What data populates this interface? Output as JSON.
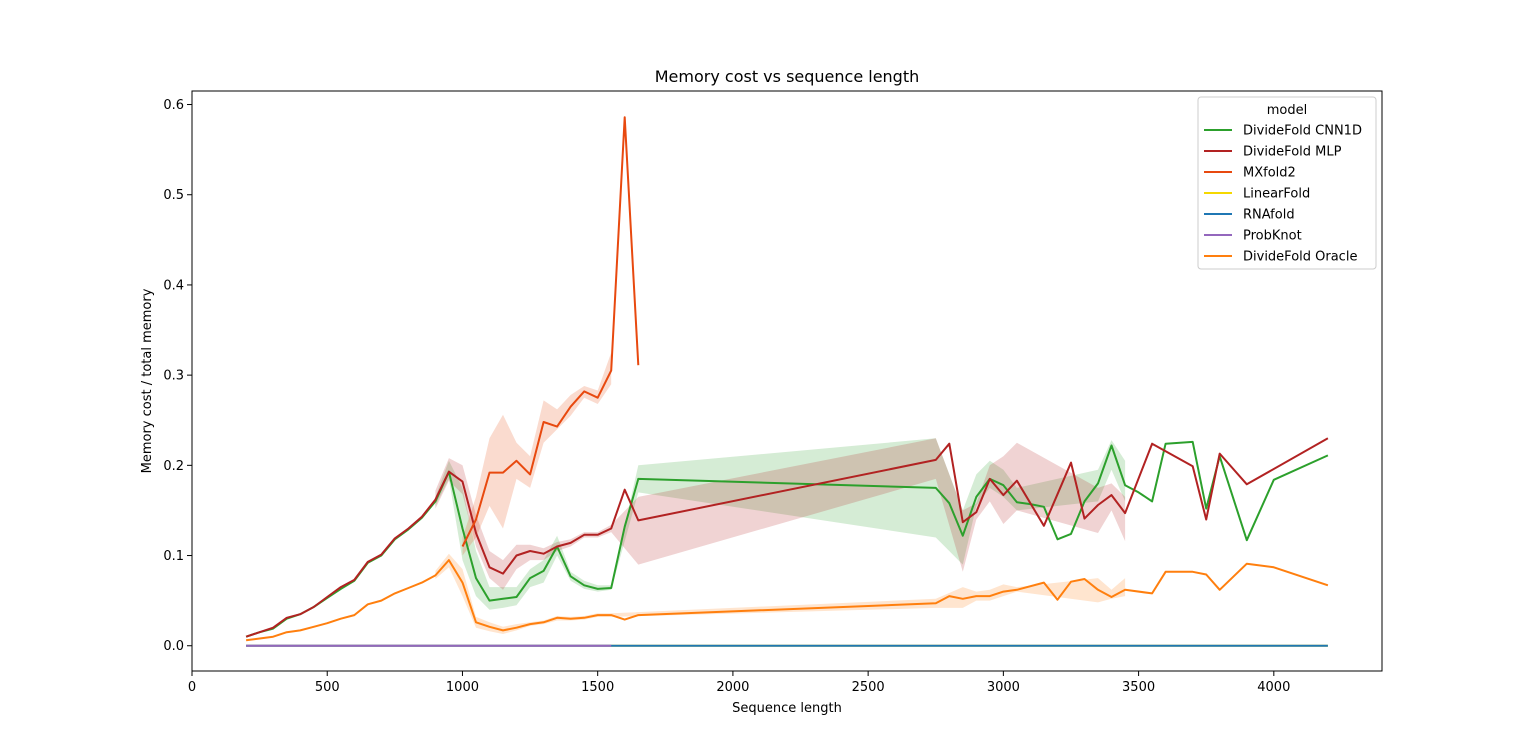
{
  "chart_data": {
    "type": "line",
    "title": "Memory cost vs sequence length",
    "xlabel": "Sequence length",
    "ylabel": "Memory cost / total memory",
    "xlim": [
      0,
      4400
    ],
    "ylim": [
      -0.028,
      0.615
    ],
    "xticks": [
      0,
      500,
      1000,
      1500,
      2000,
      2500,
      3000,
      3500,
      4000
    ],
    "yticks": [
      0.0,
      0.1,
      0.2,
      0.3,
      0.4,
      0.5,
      0.6
    ],
    "grid": false,
    "legend": {
      "title": "model",
      "position": "top-right"
    },
    "series": [
      {
        "name": "DivideFold CNN1D",
        "color": "#2ca02c",
        "x": [
          200,
          250,
          300,
          350,
          400,
          450,
          500,
          550,
          600,
          650,
          700,
          750,
          800,
          850,
          900,
          950,
          1000,
          1050,
          1100,
          1150,
          1200,
          1250,
          1300,
          1350,
          1400,
          1450,
          1500,
          1550,
          1600,
          1650,
          2750,
          2800,
          2850,
          2900,
          2950,
          3000,
          3050,
          3100,
          3150,
          3200,
          3250,
          3300,
          3350,
          3400,
          3450,
          3500,
          3550,
          3600,
          3700,
          3750,
          3800,
          3900,
          4000,
          4200
        ],
        "y": [
          0.01,
          0.015,
          0.019,
          0.03,
          0.035,
          0.043,
          0.053,
          0.063,
          0.072,
          0.092,
          0.1,
          0.118,
          0.129,
          0.142,
          0.16,
          0.193,
          0.13,
          0.075,
          0.05,
          0.052,
          0.054,
          0.075,
          0.083,
          0.11,
          0.077,
          0.067,
          0.063,
          0.064,
          0.132,
          0.185,
          0.175,
          0.158,
          0.122,
          0.165,
          0.185,
          0.178,
          0.159,
          0.157,
          0.154,
          0.118,
          0.124,
          0.16,
          0.18,
          0.222,
          0.178,
          0.17,
          0.16,
          0.224,
          0.226,
          0.152,
          0.21,
          0.117,
          0.184,
          0.211
        ],
        "band": {
          "x": [
            900,
            950,
            1000,
            1050,
            1100,
            1150,
            1200,
            1250,
            1300,
            1350,
            1400,
            1450,
            1500,
            1550,
            1650,
            2750,
            2850,
            2900,
            2950,
            3000,
            3050,
            3350,
            3400,
            3450
          ],
          "lower": [
            0.155,
            0.185,
            0.095,
            0.055,
            0.04,
            0.042,
            0.045,
            0.065,
            0.07,
            0.1,
            0.072,
            0.063,
            0.06,
            0.062,
            0.17,
            0.12,
            0.09,
            0.155,
            0.175,
            0.165,
            0.15,
            0.16,
            0.195,
            0.16
          ],
          "upper": [
            0.165,
            0.205,
            0.175,
            0.105,
            0.065,
            0.065,
            0.065,
            0.085,
            0.095,
            0.122,
            0.082,
            0.072,
            0.067,
            0.067,
            0.2,
            0.23,
            0.15,
            0.19,
            0.205,
            0.195,
            0.175,
            0.195,
            0.228,
            0.205
          ]
        }
      },
      {
        "name": "DivideFold MLP",
        "color": "#b22222",
        "x": [
          200,
          250,
          300,
          350,
          400,
          450,
          500,
          550,
          600,
          650,
          700,
          750,
          800,
          850,
          900,
          950,
          1000,
          1050,
          1100,
          1150,
          1200,
          1250,
          1300,
          1350,
          1400,
          1450,
          1500,
          1550,
          1600,
          1650,
          2750,
          2800,
          2850,
          2900,
          2950,
          3000,
          3050,
          3150,
          3200,
          3250,
          3300,
          3350,
          3400,
          3450,
          3550,
          3700,
          3750,
          3800,
          3900,
          4200
        ],
        "y": [
          0.01,
          0.015,
          0.02,
          0.031,
          0.035,
          0.043,
          0.054,
          0.065,
          0.073,
          0.093,
          0.101,
          0.119,
          0.13,
          0.143,
          0.162,
          0.193,
          0.182,
          0.125,
          0.087,
          0.08,
          0.1,
          0.105,
          0.102,
          0.11,
          0.114,
          0.123,
          0.123,
          0.13,
          0.173,
          0.139,
          0.206,
          0.224,
          0.137,
          0.148,
          0.185,
          0.167,
          0.183,
          0.133,
          0.168,
          0.203,
          0.141,
          0.156,
          0.167,
          0.147,
          0.224,
          0.199,
          0.14,
          0.213,
          0.179,
          0.23
        ],
        "band": {
          "x": [
            900,
            950,
            1000,
            1050,
            1100,
            1150,
            1200,
            1250,
            1300,
            1350,
            1400,
            1450,
            1500,
            1550,
            1650,
            2750,
            2850,
            2900,
            2950,
            3000,
            3050,
            3350,
            3400,
            3450
          ],
          "lower": [
            0.152,
            0.183,
            0.168,
            0.11,
            0.075,
            0.062,
            0.085,
            0.095,
            0.095,
            0.105,
            0.11,
            0.12,
            0.12,
            0.126,
            0.09,
            0.185,
            0.082,
            0.14,
            0.16,
            0.135,
            0.15,
            0.125,
            0.15,
            0.116
          ],
          "upper": [
            0.172,
            0.208,
            0.2,
            0.145,
            0.105,
            0.095,
            0.112,
            0.112,
            0.108,
            0.115,
            0.118,
            0.126,
            0.126,
            0.134,
            0.165,
            0.23,
            0.15,
            0.158,
            0.2,
            0.21,
            0.225,
            0.175,
            0.18,
            0.165
          ]
        }
      },
      {
        "name": "MXfold2",
        "color": "#e8490f",
        "x": [
          1000,
          1050,
          1100,
          1150,
          1200,
          1250,
          1300,
          1350,
          1400,
          1450,
          1500,
          1550,
          1600,
          1650
        ],
        "y": [
          0.11,
          0.14,
          0.192,
          0.192,
          0.205,
          0.19,
          0.248,
          0.243,
          0.265,
          0.282,
          0.275,
          0.305,
          0.586,
          0.311
        ],
        "band": {
          "x": [
            1000,
            1050,
            1100,
            1150,
            1200,
            1250,
            1300,
            1350,
            1400,
            1450,
            1500,
            1550
          ],
          "lower": [
            0.1,
            0.12,
            0.155,
            0.13,
            0.185,
            0.175,
            0.225,
            0.24,
            0.255,
            0.275,
            0.268,
            0.29
          ],
          "upper": [
            0.12,
            0.165,
            0.23,
            0.256,
            0.225,
            0.21,
            0.272,
            0.262,
            0.278,
            0.288,
            0.283,
            0.325
          ]
        }
      },
      {
        "name": "LinearFold",
        "color": "#f5d800",
        "x": [
          200,
          4200
        ],
        "y": [
          0.0,
          0.0
        ]
      },
      {
        "name": "RNAfold",
        "color": "#1f77b4",
        "x": [
          200,
          4200
        ],
        "y": [
          0.0,
          0.0
        ]
      },
      {
        "name": "ProbKnot",
        "color": "#9467bd",
        "x": [
          200,
          1550
        ],
        "y": [
          0.0,
          0.0
        ]
      },
      {
        "name": "DivideFold Oracle",
        "color": "#ff7f0e",
        "x": [
          200,
          250,
          300,
          350,
          400,
          450,
          500,
          550,
          600,
          650,
          700,
          750,
          800,
          850,
          900,
          950,
          1000,
          1050,
          1100,
          1150,
          1200,
          1250,
          1300,
          1350,
          1400,
          1450,
          1500,
          1550,
          1600,
          1650,
          2750,
          2800,
          2850,
          2900,
          2950,
          3000,
          3050,
          3150,
          3200,
          3250,
          3300,
          3350,
          3400,
          3450,
          3550,
          3600,
          3700,
          3750,
          3800,
          3900,
          4000,
          4200
        ],
        "y": [
          0.006,
          0.008,
          0.01,
          0.015,
          0.017,
          0.021,
          0.025,
          0.03,
          0.034,
          0.046,
          0.05,
          0.058,
          0.064,
          0.07,
          0.078,
          0.095,
          0.07,
          0.026,
          0.021,
          0.017,
          0.02,
          0.024,
          0.026,
          0.031,
          0.03,
          0.031,
          0.034,
          0.034,
          0.029,
          0.034,
          0.047,
          0.055,
          0.052,
          0.055,
          0.055,
          0.06,
          0.062,
          0.07,
          0.051,
          0.071,
          0.074,
          0.062,
          0.054,
          0.062,
          0.058,
          0.082,
          0.082,
          0.079,
          0.062,
          0.091,
          0.087,
          0.067
        ],
        "band": {
          "x": [
            900,
            950,
            1000,
            1050,
            1100,
            1150,
            1200,
            1250,
            1300,
            1350,
            1400,
            1450,
            1500,
            1550,
            2750,
            2850,
            2900,
            2950,
            3000,
            3050,
            3350,
            3400,
            3450
          ],
          "lower": [
            0.074,
            0.087,
            0.055,
            0.02,
            0.016,
            0.013,
            0.017,
            0.022,
            0.024,
            0.028,
            0.028,
            0.029,
            0.032,
            0.032,
            0.042,
            0.042,
            0.05,
            0.05,
            0.055,
            0.06,
            0.048,
            0.052,
            0.055
          ],
          "upper": [
            0.083,
            0.102,
            0.085,
            0.032,
            0.026,
            0.021,
            0.024,
            0.026,
            0.028,
            0.033,
            0.032,
            0.033,
            0.036,
            0.036,
            0.052,
            0.065,
            0.06,
            0.062,
            0.068,
            0.065,
            0.075,
            0.062,
            0.075
          ]
        }
      }
    ]
  }
}
